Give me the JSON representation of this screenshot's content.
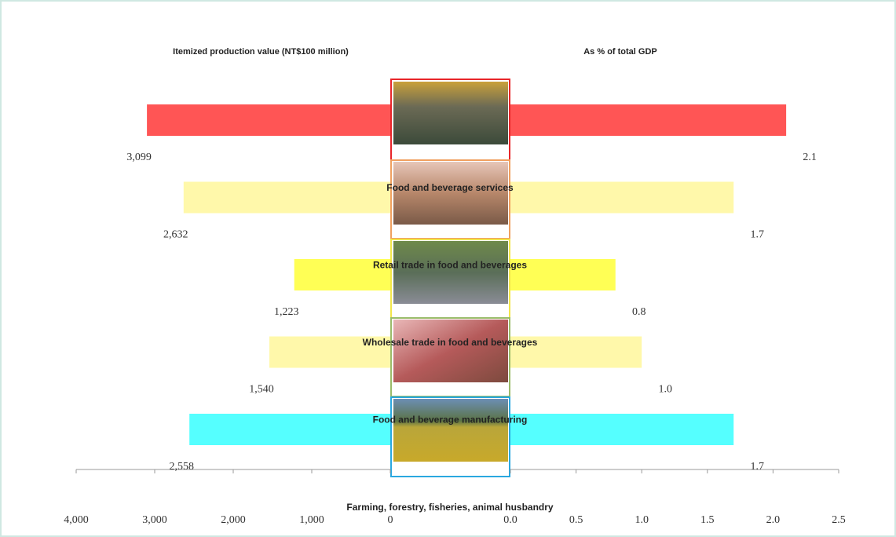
{
  "chart_data": {
    "type": "butterfly",
    "xlabel": "Itemized production value (NT$100 million)",
    "x2label": "As % of total GDP",
    "categories": [
      "Food and beverage services",
      "Retail trade in food and beverages",
      "Wholesale trade in food and beverages",
      "Food and beverage manufacturing",
      "Farming, forestry, fisheries, animal husbandry"
    ],
    "colors": [
      "#ff5555",
      "#fff8aa",
      "#ffff55",
      "#fff8aa",
      "#55ffff"
    ],
    "series": [
      {
        "axis": "x",
        "values": [
          3099,
          2632,
          1223,
          1540,
          2558
        ],
        "value_labels": [
          "3,099",
          "2,632",
          "1,223",
          "1,540",
          "2,558"
        ]
      },
      {
        "axis": "x2",
        "values": [
          2.1,
          1.7,
          0.8,
          1.0,
          1.7
        ],
        "value_labels": [
          "2.1",
          "1.7",
          "0.8",
          "1.0",
          "1.7"
        ]
      }
    ],
    "xlim": [
      4000,
      0
    ],
    "xticks": [
      {
        "value": 4000,
        "label": "4,000"
      },
      {
        "value": 3000,
        "label": "3,000"
      },
      {
        "value": 2000,
        "label": "2,000"
      },
      {
        "value": 1000,
        "label": "1,000"
      },
      0
    ],
    "x2lim": [
      0,
      2.5
    ],
    "x2ticks": [
      {
        "value": 0,
        "label": "0.0"
      },
      0.5,
      {
        "value": 1,
        "label": "1.0"
      },
      1.5,
      {
        "value": 2,
        "label": "2.0"
      },
      2.5
    ]
  }
}
